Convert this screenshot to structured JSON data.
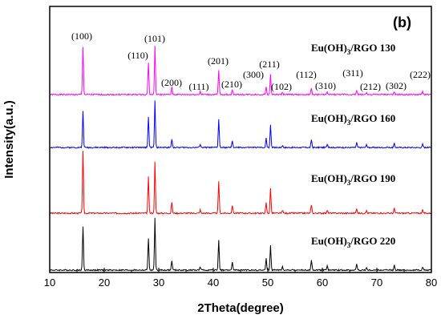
{
  "chart_data": {
    "type": "line",
    "panel_label": "(b)",
    "xlabel": "2Theta(degree)",
    "ylabel": "Intensity(a.u.)",
    "xlim": [
      10,
      80
    ],
    "x_ticks": [
      10,
      20,
      30,
      40,
      50,
      60,
      70,
      80
    ],
    "y_ticks_visible": false,
    "grid": false,
    "series": [
      {
        "name_parts": [
          "Eu(OH)",
          "3",
          "/RGO 130"
        ],
        "color": "#ff00ff",
        "peaks": [
          {
            "x": 16.1,
            "h": 59
          },
          {
            "x": 28.1,
            "h": 40
          },
          {
            "x": 29.3,
            "h": 60
          },
          {
            "x": 32.4,
            "h": 9
          },
          {
            "x": 37.6,
            "h": 4
          },
          {
            "x": 41.0,
            "h": 30
          },
          {
            "x": 43.5,
            "h": 6
          },
          {
            "x": 49.7,
            "h": 10
          },
          {
            "x": 50.5,
            "h": 25
          },
          {
            "x": 52.7,
            "h": 3
          },
          {
            "x": 58.0,
            "h": 8
          },
          {
            "x": 60.9,
            "h": 3
          },
          {
            "x": 66.3,
            "h": 5
          },
          {
            "x": 68.1,
            "h": 3
          },
          {
            "x": 73.2,
            "h": 4
          },
          {
            "x": 78.4,
            "h": 4
          }
        ]
      },
      {
        "name_parts": [
          "Eu(OH)",
          "3",
          "/RGO 160"
        ],
        "color": "#0000ff",
        "peaks": [
          {
            "x": 16.1,
            "h": 45
          },
          {
            "x": 28.1,
            "h": 38
          },
          {
            "x": 29.3,
            "h": 58
          },
          {
            "x": 32.4,
            "h": 11
          },
          {
            "x": 37.6,
            "h": 4
          },
          {
            "x": 41.0,
            "h": 35
          },
          {
            "x": 43.5,
            "h": 8
          },
          {
            "x": 49.7,
            "h": 12
          },
          {
            "x": 50.5,
            "h": 28
          },
          {
            "x": 52.7,
            "h": 3
          },
          {
            "x": 58.0,
            "h": 10
          },
          {
            "x": 60.9,
            "h": 4
          },
          {
            "x": 66.3,
            "h": 6
          },
          {
            "x": 68.1,
            "h": 3
          },
          {
            "x": 73.2,
            "h": 5
          },
          {
            "x": 78.4,
            "h": 4
          }
        ]
      },
      {
        "name_parts": [
          "Eu(OH)",
          "3",
          "/RGO 190"
        ],
        "color": "#ff0000",
        "peaks": [
          {
            "x": 16.1,
            "h": 77
          },
          {
            "x": 28.1,
            "h": 45
          },
          {
            "x": 29.3,
            "h": 64
          },
          {
            "x": 32.4,
            "h": 14
          },
          {
            "x": 37.6,
            "h": 4
          },
          {
            "x": 41.0,
            "h": 40
          },
          {
            "x": 43.5,
            "h": 10
          },
          {
            "x": 49.7,
            "h": 13
          },
          {
            "x": 50.5,
            "h": 31
          },
          {
            "x": 52.7,
            "h": 4
          },
          {
            "x": 58.0,
            "h": 11
          },
          {
            "x": 60.9,
            "h": 4
          },
          {
            "x": 66.3,
            "h": 6
          },
          {
            "x": 68.1,
            "h": 3
          },
          {
            "x": 73.2,
            "h": 6
          },
          {
            "x": 78.4,
            "h": 4
          }
        ]
      },
      {
        "name_parts": [
          "Eu(OH)",
          "3",
          "/RGO 220"
        ],
        "color": "#000000",
        "peaks": [
          {
            "x": 16.1,
            "h": 55
          },
          {
            "x": 28.1,
            "h": 40
          },
          {
            "x": 29.3,
            "h": 65
          },
          {
            "x": 32.4,
            "h": 12
          },
          {
            "x": 37.6,
            "h": 4
          },
          {
            "x": 41.0,
            "h": 38
          },
          {
            "x": 43.5,
            "h": 10
          },
          {
            "x": 49.7,
            "h": 14
          },
          {
            "x": 50.5,
            "h": 31
          },
          {
            "x": 52.7,
            "h": 4
          },
          {
            "x": 58.0,
            "h": 12
          },
          {
            "x": 60.9,
            "h": 5
          },
          {
            "x": 66.3,
            "h": 8
          },
          {
            "x": 68.1,
            "h": 3
          },
          {
            "x": 73.2,
            "h": 6
          },
          {
            "x": 78.4,
            "h": 4
          }
        ]
      }
    ],
    "peak_labels": [
      {
        "text": "(100)",
        "x": 16.1
      },
      {
        "text": "(110)",
        "x": 28.1
      },
      {
        "text": "(101)",
        "x": 29.3
      },
      {
        "text": "(200)",
        "x": 32.4
      },
      {
        "text": "(111)",
        "x": 37.6
      },
      {
        "text": "(201)",
        "x": 41.0
      },
      {
        "text": "(210)",
        "x": 43.5
      },
      {
        "text": "(300)",
        "x": 49.7
      },
      {
        "text": "(211)",
        "x": 50.5
      },
      {
        "text": "(102)",
        "x": 52.7
      },
      {
        "text": "(112)",
        "x": 58.0
      },
      {
        "text": "(310)",
        "x": 60.9
      },
      {
        "text": "(311)",
        "x": 66.3
      },
      {
        "text": "(212)",
        "x": 68.1
      },
      {
        "text": "(302)",
        "x": 73.2
      },
      {
        "text": "(222)",
        "x": 78.4
      }
    ]
  }
}
